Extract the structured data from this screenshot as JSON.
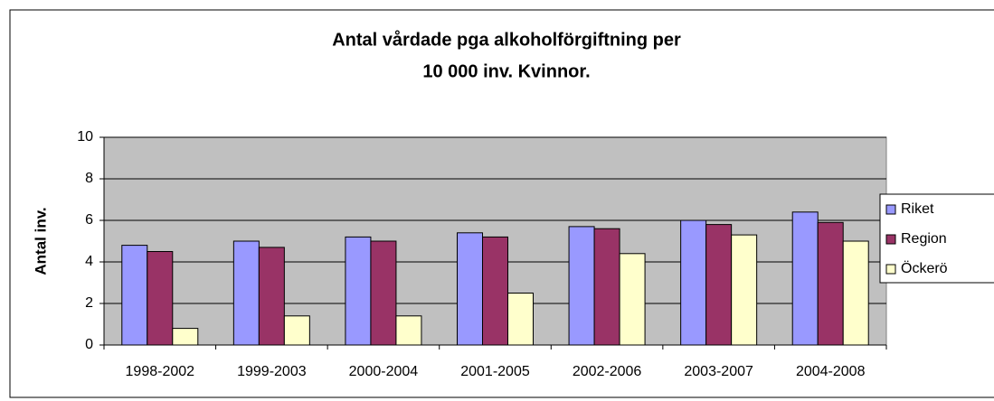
{
  "chart_data": {
    "type": "bar",
    "title": [
      "Antal vårdade pga alkoholförgiftning per",
      "10 000 inv. Kvinnor."
    ],
    "y_label": "Antal inv.",
    "categories": [
      "1998-2002",
      "1999-2003",
      "2000-2004",
      "2001-2005",
      "2002-2006",
      "2003-2007",
      "2004-2008"
    ],
    "series": [
      {
        "name": "Riket",
        "color": "#9999ff",
        "values": [
          4.8,
          5.0,
          5.2,
          5.4,
          5.7,
          6.0,
          6.4
        ]
      },
      {
        "name": "Region",
        "color": "#993366",
        "values": [
          4.5,
          4.7,
          5.0,
          5.2,
          5.6,
          5.8,
          5.9
        ]
      },
      {
        "name": "Öckerö",
        "color": "#ffffcc",
        "values": [
          0.8,
          1.4,
          1.4,
          2.5,
          4.4,
          5.3,
          5.0
        ]
      }
    ],
    "ylim": [
      0,
      10
    ],
    "yticks": [
      0,
      2,
      4,
      6,
      8,
      10
    ],
    "grid": true,
    "legend": "right",
    "plot_background": "#c0c0c0"
  }
}
